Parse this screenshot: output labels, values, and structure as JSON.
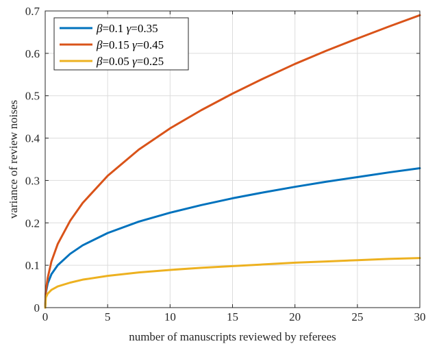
{
  "chart_data": {
    "type": "line",
    "title": "",
    "xlabel": "number of manuscripts reviewed by referees",
    "ylabel": "variance of review noises",
    "xlim": [
      0,
      30
    ],
    "ylim": [
      0,
      0.7
    ],
    "xticks": [
      0,
      5,
      10,
      15,
      20,
      25,
      30
    ],
    "yticks": [
      0,
      0.1,
      0.2,
      0.3,
      0.4,
      0.5,
      0.6,
      0.7
    ],
    "xtick_labels": [
      "0",
      "5",
      "10",
      "15",
      "20",
      "25",
      "30"
    ],
    "ytick_labels": [
      "0",
      "0.1",
      "0.2",
      "0.3",
      "0.4",
      "0.5",
      "0.6",
      "0.7"
    ],
    "grid": true,
    "legend_position": "top-left",
    "series": [
      {
        "name": "β=0.1 γ=0.35",
        "beta": "0.1",
        "gamma": "0.35",
        "color": "#0072BD",
        "x": [
          0,
          0.05,
          0.2,
          0.5,
          1,
          2,
          3,
          5,
          7.5,
          10,
          12.5,
          15,
          17.5,
          20,
          22.5,
          25,
          27.5,
          30
        ],
        "y": [
          0,
          0.035,
          0.057,
          0.079,
          0.1,
          0.127,
          0.147,
          0.176,
          0.203,
          0.224,
          0.242,
          0.258,
          0.272,
          0.285,
          0.297,
          0.308,
          0.319,
          0.329
        ]
      },
      {
        "name": "β=0.15 γ=0.45",
        "beta": "0.15",
        "gamma": "0.45",
        "color": "#D95319",
        "x": [
          0,
          0.05,
          0.2,
          0.5,
          1,
          2,
          3,
          5,
          7.5,
          10,
          12.5,
          15,
          17.5,
          20,
          22.5,
          25,
          27.5,
          30
        ],
        "y": [
          0,
          0.039,
          0.07,
          0.109,
          0.15,
          0.205,
          0.247,
          0.311,
          0.373,
          0.423,
          0.466,
          0.505,
          0.541,
          0.575,
          0.606,
          0.635,
          0.663,
          0.69
        ]
      },
      {
        "name": "β=0.05 γ=0.25",
        "beta": "0.05",
        "gamma": "0.25",
        "color": "#EDB120",
        "x": [
          0,
          0.05,
          0.2,
          0.5,
          1,
          2,
          3,
          5,
          7.5,
          10,
          12.5,
          15,
          17.5,
          20,
          22.5,
          25,
          27.5,
          30
        ],
        "y": [
          0,
          0.024,
          0.033,
          0.042,
          0.05,
          0.059,
          0.066,
          0.075,
          0.083,
          0.089,
          0.094,
          0.098,
          0.102,
          0.106,
          0.109,
          0.112,
          0.115,
          0.117
        ]
      }
    ]
  }
}
